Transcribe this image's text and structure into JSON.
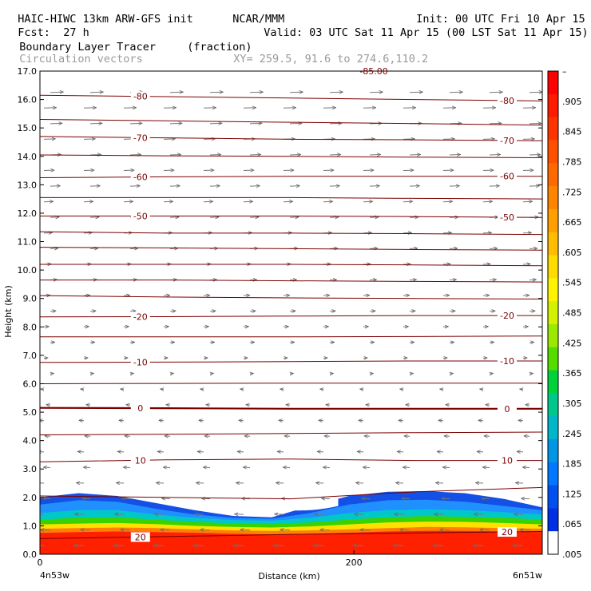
{
  "header": {
    "model": "HAIC-HIWC 13km ARW-GFS init",
    "org": "NCAR/MMM",
    "init": "Init: 00 UTC Fri 10 Apr 15",
    "fcst_label": "Fcst:",
    "fcst_value": "27 h",
    "valid": "Valid: 03 UTC Sat 11 Apr 15 (00 LST Sat 11 Apr 15)",
    "field": "Boundary Layer Tracer",
    "units": "(fraction)",
    "overlay": "Circulation vectors",
    "xy": "XY= 259.5, 91.6 to 274.6,110.2"
  },
  "chart_data": {
    "type": "heatmap",
    "title": "Boundary Layer Tracer",
    "xlabel": "Distance (km)",
    "ylabel": "Height (km)",
    "xlim": [
      0,
      320
    ],
    "ylim": [
      0,
      17
    ],
    "x_ticks": [
      {
        "value": 0,
        "label": "0"
      },
      {
        "value": 200,
        "label": "200"
      }
    ],
    "x_end_labels": [
      "4n53w",
      "6n51w"
    ],
    "y_ticks": [
      "0.0",
      "1.0",
      "2.0",
      "3.0",
      "4.0",
      "5.0",
      "6.0",
      "7.0",
      "8.0",
      "9.0",
      "10.0",
      "11.0",
      "12.0",
      "13.0",
      "14.0",
      "15.0",
      "16.0",
      "17.0"
    ],
    "colorbar": {
      "labels": [
        "–",
        ".905",
        ".845",
        ".785",
        ".725",
        ".665",
        ".605",
        ".545",
        ".485",
        ".425",
        ".365",
        ".305",
        ".245",
        ".185",
        ".125",
        ".065",
        ".005"
      ],
      "colors": [
        "#ff0000",
        "#ff1a00",
        "#ff3300",
        "#ff5000",
        "#ff6a00",
        "#ff8400",
        "#ff9f00",
        "#ffbd00",
        "#ffdc00",
        "#fff300",
        "#d4f200",
        "#9be800",
        "#55dd00",
        "#00d23c",
        "#00c88c",
        "#00b6c8",
        "#0096e6",
        "#0078ff",
        "#0050f0",
        "#0030e6",
        "#ffffff"
      ]
    },
    "field_layers": [
      {
        "name": "red_core",
        "color": "#ff2000",
        "top_km": [
          0.75,
          0.78,
          0.8,
          0.78,
          0.76,
          0.72,
          0.7,
          0.72,
          0.76,
          0.8,
          0.82,
          0.82,
          0.8,
          0.78
        ]
      },
      {
        "name": "orange",
        "color": "#ff8000",
        "top_km": [
          0.9,
          0.92,
          0.94,
          0.92,
          0.88,
          0.84,
          0.82,
          0.84,
          0.88,
          0.92,
          0.96,
          0.95,
          0.92,
          0.9
        ]
      },
      {
        "name": "yellow",
        "color": "#ffe000",
        "top_km": [
          1.05,
          1.08,
          1.1,
          1.06,
          1.0,
          0.96,
          0.94,
          0.98,
          1.05,
          1.12,
          1.15,
          1.14,
          1.1,
          1.05
        ]
      },
      {
        "name": "green",
        "color": "#3ad200",
        "top_km": [
          1.22,
          1.28,
          1.3,
          1.22,
          1.14,
          1.08,
          1.06,
          1.12,
          1.22,
          1.3,
          1.34,
          1.32,
          1.28,
          1.22
        ]
      },
      {
        "name": "cyan",
        "color": "#00c8c8",
        "top_km": [
          1.45,
          1.55,
          1.55,
          1.4,
          1.28,
          1.2,
          1.18,
          1.28,
          1.45,
          1.55,
          1.58,
          1.55,
          1.48,
          1.4
        ]
      },
      {
        "name": "blue_light",
        "color": "#2090ff",
        "top_km": [
          1.75,
          1.9,
          1.85,
          1.6,
          1.4,
          1.28,
          1.25,
          1.45,
          1.75,
          1.9,
          1.92,
          1.85,
          1.7,
          1.55
        ]
      },
      {
        "name": "blue_dark",
        "color": "#1450e6",
        "top_km": [
          2.0,
          2.15,
          2.05,
          1.8,
          1.55,
          1.35,
          1.3,
          1.7,
          2.05,
          2.2,
          2.22,
          2.15,
          1.95,
          1.65
        ]
      }
    ],
    "isotherms": [
      {
        "label": "-80",
        "y": [
          16.15,
          16.1,
          16.05,
          16.0,
          15.95
        ]
      },
      {
        "label": "",
        "y": [
          15.3,
          15.25,
          15.2,
          15.15,
          15.1
        ]
      },
      {
        "label": "-70",
        "y": [
          14.7,
          14.65,
          14.6,
          14.58,
          14.55
        ]
      },
      {
        "label": "",
        "y": [
          14.05,
          14.02,
          14.0,
          13.97,
          13.95
        ]
      },
      {
        "label": "-60",
        "y": [
          13.25,
          13.28,
          13.3,
          13.3,
          13.3
        ]
      },
      {
        "label": "",
        "y": [
          12.55,
          12.55,
          12.55,
          12.52,
          12.5
        ]
      },
      {
        "label": "-50",
        "y": [
          11.9,
          11.9,
          11.9,
          11.88,
          11.85
        ]
      },
      {
        "label": "",
        "y": [
          11.35,
          11.3,
          11.3,
          11.28,
          11.25
        ]
      },
      {
        "label": "",
        "y": [
          10.8,
          10.78,
          10.75,
          10.72,
          10.7
        ]
      },
      {
        "label": "",
        "y": [
          10.2,
          10.2,
          10.2,
          10.18,
          10.15
        ]
      },
      {
        "label": "",
        "y": [
          9.65,
          9.65,
          9.62,
          9.6,
          9.58
        ]
      },
      {
        "label": "",
        "y": [
          9.1,
          9.05,
          9.02,
          9.0,
          8.98
        ]
      },
      {
        "label": "-20",
        "y": [
          8.35,
          8.36,
          8.38,
          8.4,
          8.4
        ]
      },
      {
        "label": "",
        "y": [
          7.65,
          7.65,
          7.65,
          7.66,
          7.68
        ]
      },
      {
        "label": "-10",
        "y": [
          6.75,
          6.76,
          6.78,
          6.8,
          6.8
        ]
      },
      {
        "label": "",
        "y": [
          6.0,
          6.01,
          6.02,
          6.02,
          6.02
        ]
      },
      {
        "label": "0",
        "y": [
          5.15,
          5.14,
          5.12,
          5.12,
          5.12
        ]
      },
      {
        "label": "",
        "y": [
          4.2,
          4.22,
          4.25,
          4.28,
          4.3
        ]
      },
      {
        "label": "10",
        "y": [
          3.25,
          3.32,
          3.35,
          3.3,
          3.3
        ]
      },
      {
        "label": "",
        "y": [
          2.05,
          2.0,
          1.95,
          2.2,
          2.35
        ]
      },
      {
        "label": "20",
        "y": [
          0.55,
          0.62,
          0.7,
          0.75,
          0.8
        ]
      }
    ],
    "vectors": {
      "description": "Circulation vectors, westerly aloft, easterly below ~6 km"
    },
    "top_label": "-85.00"
  }
}
